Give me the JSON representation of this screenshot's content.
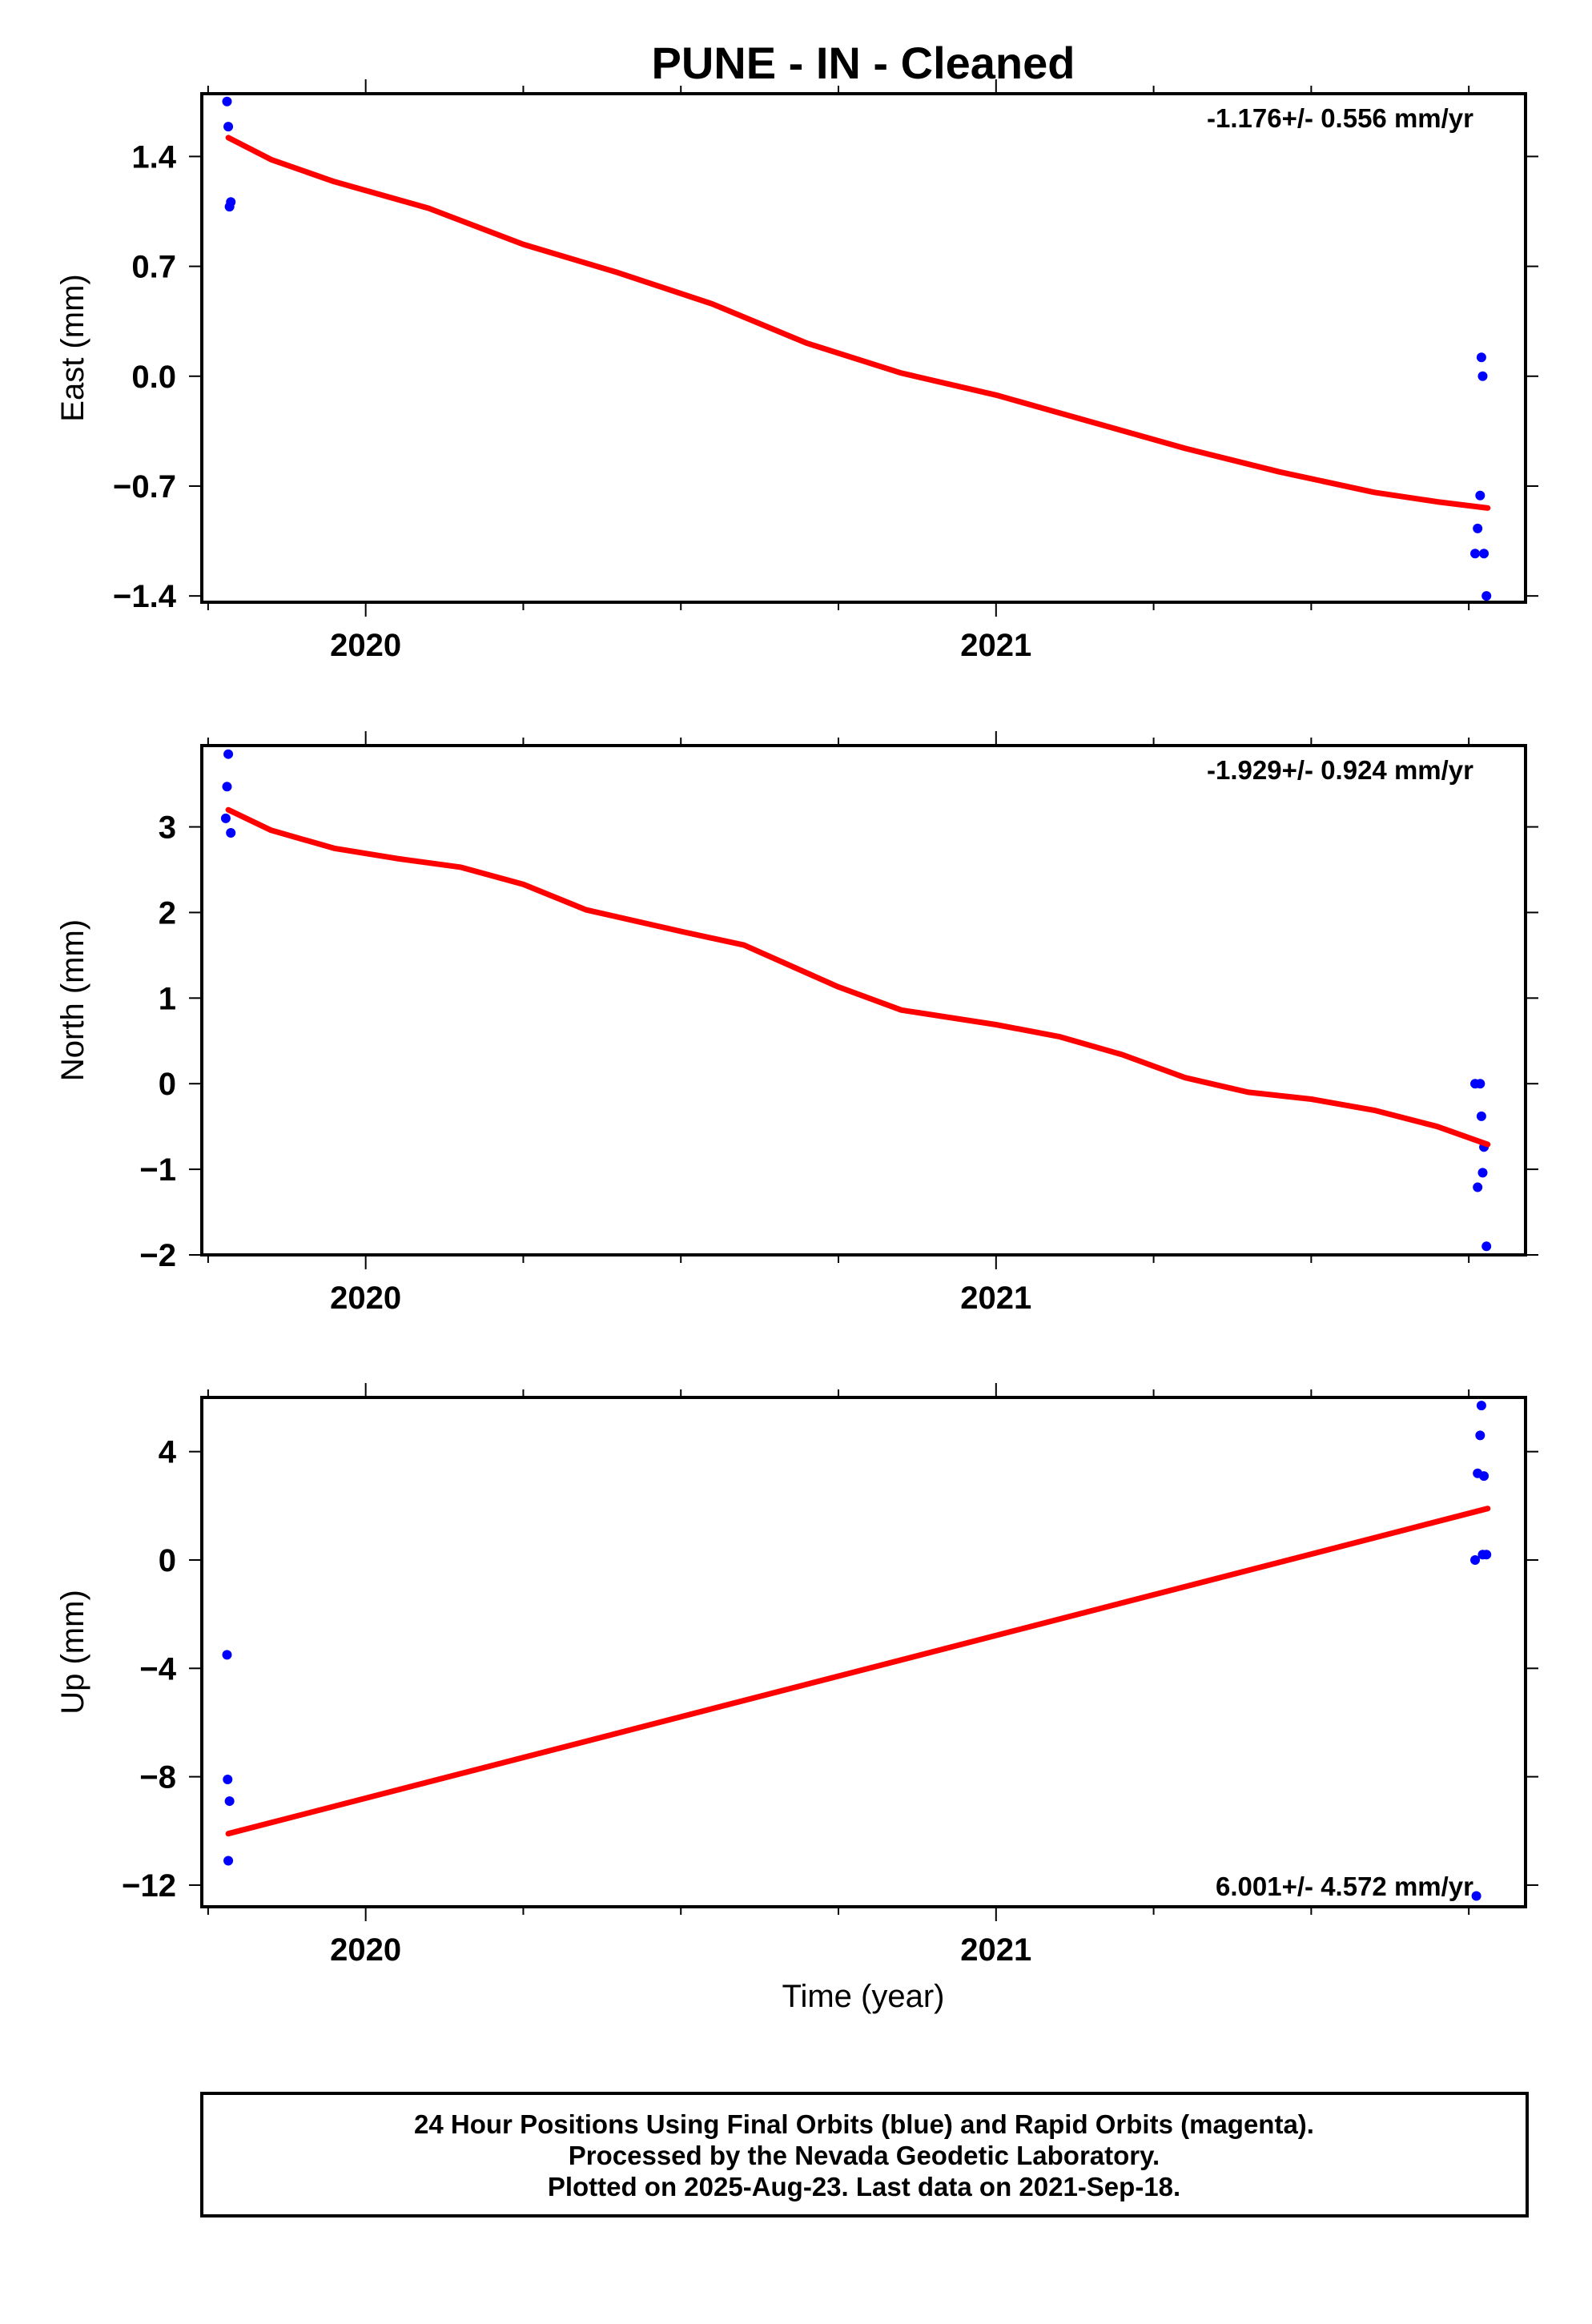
{
  "title": "PUNE  - IN - Cleaned",
  "x_axis_label": "Time (year)",
  "caption": [
    "24 Hour Positions Using Final Orbits (blue) and Rapid Orbits (magenta).",
    "Processed by the Nevada Geodetic Laboratory.",
    "Plotted on 2025-Aug-23. Last data on 2021-Sep-18."
  ],
  "colors": {
    "data": "#0000ff",
    "fit": "#ff0000",
    "frame": "#000000"
  },
  "chart_data": [
    {
      "type": "scatter",
      "ylabel": "East (mm)",
      "xlim": [
        2019.74,
        2021.84
      ],
      "ylim": [
        -1.44,
        1.8
      ],
      "yticks": [
        1.4,
        0.7,
        0.0,
        -0.7,
        -1.4
      ],
      "ytick_labels": [
        "1.4",
        "0.7",
        "0.0",
        "−0.7",
        "−1.4"
      ],
      "xticks": [
        2020,
        2021
      ],
      "xtick_labels": [
        "2020",
        "2021"
      ],
      "rate_label": "-1.176+/- 0.556 mm/yr",
      "series": [
        {
          "kind": "points",
          "x": [
            2019.78,
            2019.782,
            2019.784,
            2019.786,
            2021.76,
            2021.764,
            2021.768,
            2021.77,
            2021.772,
            2021.774,
            2021.778
          ],
          "y": [
            1.75,
            1.59,
            1.08,
            1.11,
            -1.13,
            -0.97,
            -0.76,
            0.12,
            0.0,
            -1.13,
            -1.4
          ]
        },
        {
          "kind": "line",
          "x": [
            2019.782,
            2019.85,
            2019.95,
            2020.1,
            2020.25,
            2020.4,
            2020.55,
            2020.7,
            2020.85,
            2021.0,
            2021.15,
            2021.3,
            2021.45,
            2021.6,
            2021.7,
            2021.78
          ],
          "y": [
            1.52,
            1.38,
            1.24,
            1.07,
            0.84,
            0.66,
            0.46,
            0.21,
            0.02,
            -0.12,
            -0.29,
            -0.46,
            -0.61,
            -0.74,
            -0.8,
            -0.84
          ]
        }
      ]
    },
    {
      "type": "scatter",
      "ylabel": "North (mm)",
      "xlim": [
        2019.74,
        2021.84
      ],
      "ylim": [
        -2.0,
        3.95
      ],
      "yticks": [
        3,
        2,
        1,
        0,
        -1,
        -2
      ],
      "ytick_labels": [
        "3",
        "2",
        "1",
        "0",
        "−1",
        "−2"
      ],
      "xticks": [
        2020,
        2021
      ],
      "xtick_labels": [
        "2020",
        "2021"
      ],
      "rate_label": "-1.929+/- 0.924 mm/yr",
      "series": [
        {
          "kind": "points",
          "x": [
            2019.778,
            2019.78,
            2019.782,
            2019.786,
            2021.76,
            2021.764,
            2021.768,
            2021.77,
            2021.772,
            2021.774,
            2021.778
          ],
          "y": [
            3.1,
            3.47,
            3.85,
            2.93,
            0.0,
            -1.21,
            0.0,
            -0.38,
            -1.04,
            -0.74,
            -1.9
          ]
        },
        {
          "kind": "line",
          "x": [
            2019.782,
            2019.85,
            2019.95,
            2020.05,
            2020.15,
            2020.25,
            2020.35,
            2020.5,
            2020.6,
            2020.75,
            2020.85,
            2021.0,
            2021.1,
            2021.2,
            2021.3,
            2021.4,
            2021.5,
            2021.6,
            2021.7,
            2021.78
          ],
          "y": [
            3.2,
            2.96,
            2.75,
            2.63,
            2.53,
            2.33,
            2.03,
            1.78,
            1.62,
            1.13,
            0.86,
            0.69,
            0.55,
            0.34,
            0.07,
            -0.1,
            -0.18,
            -0.31,
            -0.5,
            -0.71
          ]
        }
      ]
    },
    {
      "type": "scatter",
      "ylabel": "Up (mm)",
      "xlim": [
        2019.74,
        2021.84
      ],
      "ylim": [
        -12.8,
        6.0
      ],
      "yticks": [
        4,
        0,
        -4,
        -8,
        -12
      ],
      "ytick_labels": [
        "4",
        "0",
        "−4",
        "−8",
        "−12"
      ],
      "xticks": [
        2020,
        2021
      ],
      "xtick_labels": [
        "2020",
        "2021"
      ],
      "rate_label": "6.001+/- 4.572 mm/yr",
      "series": [
        {
          "kind": "points",
          "x": [
            2019.78,
            2019.781,
            2019.784,
            2019.782,
            2021.76,
            2021.764,
            2021.768,
            2021.77,
            2021.772,
            2021.774,
            2021.778,
            2021.762
          ],
          "y": [
            -3.5,
            -8.1,
            -8.9,
            -11.1,
            0.0,
            3.2,
            4.6,
            5.7,
            0.2,
            3.1,
            0.2,
            -12.4
          ]
        },
        {
          "kind": "line",
          "x": [
            2019.782,
            2021.78
          ],
          "y": [
            -10.1,
            1.9
          ]
        }
      ]
    }
  ]
}
